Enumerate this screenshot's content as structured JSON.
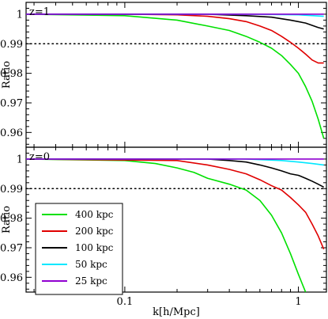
{
  "chart_data": [
    {
      "type": "line",
      "annotation": "z=1",
      "xlabel": "",
      "ylabel": "Ratio",
      "xscale": "log",
      "xlim": [
        0.027,
        1.45
      ],
      "ylim": [
        0.955,
        1.004
      ],
      "yticks": [
        0.96,
        0.97,
        0.98,
        0.99,
        1
      ],
      "ytick_labels": [
        "0.96",
        "0.97",
        "0.98",
        "0.99",
        "1"
      ],
      "reference_line": {
        "y": 0.99,
        "style": "dotted"
      },
      "series": [
        {
          "name": "400 kpc",
          "color": "#00e000",
          "x": [
            0.027,
            0.1,
            0.2,
            0.3,
            0.4,
            0.5,
            0.6,
            0.7,
            0.8,
            0.9,
            1.0,
            1.1,
            1.2,
            1.3,
            1.4
          ],
          "y": [
            1.0,
            0.9995,
            0.998,
            0.996,
            0.9945,
            0.9925,
            0.9905,
            0.9885,
            0.986,
            0.983,
            0.98,
            0.9755,
            0.9705,
            0.9645,
            0.958
          ]
        },
        {
          "name": "200 kpc",
          "color": "#e00000",
          "x": [
            0.027,
            0.1,
            0.2,
            0.3,
            0.4,
            0.5,
            0.6,
            0.7,
            0.8,
            0.9,
            1.0,
            1.1,
            1.2,
            1.3,
            1.4
          ],
          "y": [
            1.0,
            1.0,
            0.9998,
            0.9993,
            0.9985,
            0.9975,
            0.996,
            0.9945,
            0.9925,
            0.9905,
            0.9885,
            0.9865,
            0.9845,
            0.9835,
            0.9835
          ]
        },
        {
          "name": "100 kpc",
          "color": "#000000",
          "x": [
            0.027,
            0.3,
            0.5,
            0.7,
            0.9,
            1.1,
            1.3,
            1.4
          ],
          "y": [
            1.0,
            1.0,
            0.9995,
            0.999,
            0.998,
            0.997,
            0.9955,
            0.995
          ]
        },
        {
          "name": "50 kpc",
          "color": "#00e8ff",
          "x": [
            0.027,
            0.5,
            1.0,
            1.4
          ],
          "y": [
            1.0,
            1.0,
            0.9998,
            0.9993
          ]
        },
        {
          "name": "25 kpc",
          "color": "#9000d0",
          "x": [
            0.027,
            1.4
          ],
          "y": [
            1.0,
            1.0
          ]
        }
      ]
    },
    {
      "type": "line",
      "annotation": "z=0",
      "xlabel": "k[h/Mpc]",
      "ylabel": "Ratio",
      "xscale": "log",
      "xlim": [
        0.027,
        1.45
      ],
      "ylim": [
        0.955,
        1.004
      ],
      "xticks": [
        0.1,
        1
      ],
      "xtick_labels": [
        "0.1",
        "1"
      ],
      "yticks": [
        0.96,
        0.97,
        0.98,
        0.99,
        1
      ],
      "ytick_labels": [
        "0.96",
        "0.97",
        "0.98",
        "0.99",
        "1"
      ],
      "reference_line": {
        "y": 0.99,
        "style": "dotted"
      },
      "legend": {
        "position": "lower-left",
        "entries": [
          "400 kpc",
          "200 kpc",
          "100 kpc",
          "50 kpc",
          "25 kpc"
        ]
      },
      "series": [
        {
          "name": "400 kpc",
          "color": "#00e000",
          "x": [
            0.027,
            0.1,
            0.15,
            0.2,
            0.25,
            0.3,
            0.4,
            0.5,
            0.6,
            0.7,
            0.8,
            0.9,
            1.0,
            1.1
          ],
          "y": [
            1.0,
            0.9995,
            0.9985,
            0.997,
            0.9955,
            0.9935,
            0.9915,
            0.9895,
            0.986,
            0.981,
            0.975,
            0.968,
            0.961,
            0.955
          ]
        },
        {
          "name": "200 kpc",
          "color": "#e00000",
          "x": [
            0.027,
            0.2,
            0.3,
            0.4,
            0.5,
            0.6,
            0.7,
            0.8,
            0.9,
            1.0,
            1.1,
            1.2,
            1.3,
            1.4
          ],
          "y": [
            1.0,
            0.9995,
            0.998,
            0.9965,
            0.995,
            0.993,
            0.991,
            0.9895,
            0.987,
            0.9845,
            0.982,
            0.978,
            0.974,
            0.9695
          ]
        },
        {
          "name": "100 kpc",
          "color": "#000000",
          "x": [
            0.027,
            0.3,
            0.4,
            0.5,
            0.6,
            0.7,
            0.8,
            0.9,
            1.0,
            1.1,
            1.2,
            1.3,
            1.4
          ],
          "y": [
            1.0,
            1.0,
            0.9995,
            0.999,
            0.998,
            0.997,
            0.996,
            0.995,
            0.9945,
            0.9935,
            0.9925,
            0.9915,
            0.9905
          ]
        },
        {
          "name": "50 kpc",
          "color": "#00e8ff",
          "x": [
            0.027,
            0.5,
            0.8,
            1.0,
            1.2,
            1.4
          ],
          "y": [
            1.0,
            1.0,
            0.9995,
            0.999,
            0.9985,
            0.998
          ]
        },
        {
          "name": "25 kpc",
          "color": "#9000d0",
          "x": [
            0.027,
            1.4
          ],
          "y": [
            1.0,
            1.0
          ]
        }
      ]
    }
  ]
}
